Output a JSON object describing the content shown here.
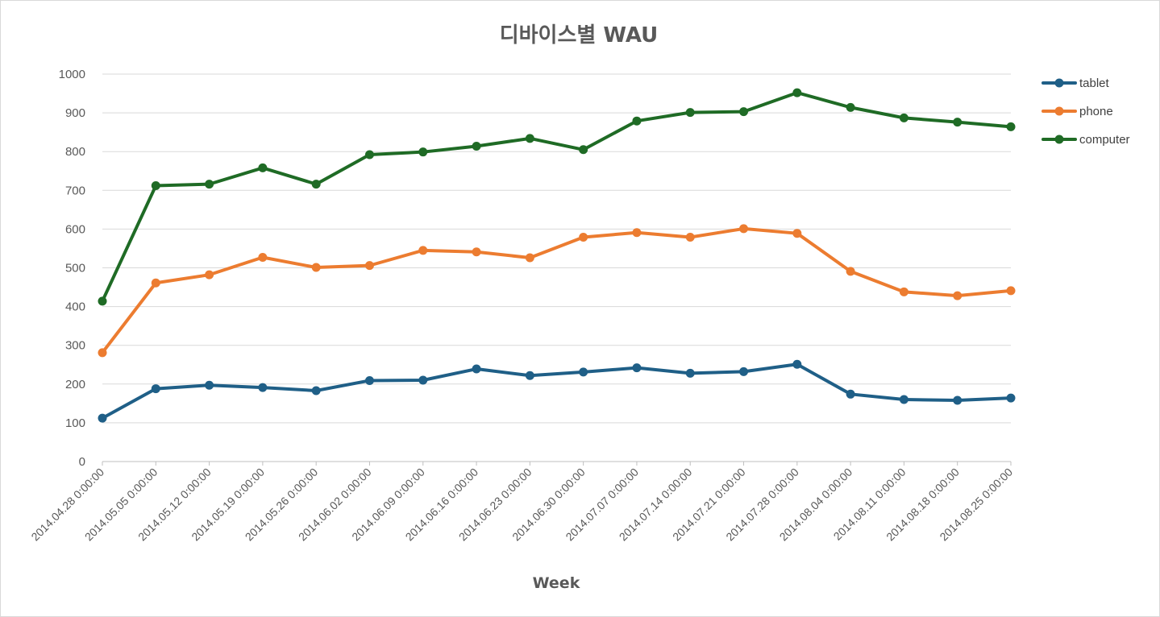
{
  "chart_data": {
    "type": "line",
    "title": "디바이스별 WAU",
    "xlabel": "Week",
    "ylabel": "",
    "ylim": [
      0,
      1000
    ],
    "yticks": [
      0,
      100,
      200,
      300,
      400,
      500,
      600,
      700,
      800,
      900,
      1000
    ],
    "grid": true,
    "legend_position": "right",
    "categories": [
      "2014.04.28 0:00:00",
      "2014.05.05 0:00:00",
      "2014.05.12 0:00:00",
      "2014.05.19 0:00:00",
      "2014.05.26 0:00:00",
      "2014.06.02 0:00:00",
      "2014.06.09 0:00:00",
      "2014.06.16 0:00:00",
      "2014.06.23 0:00:00",
      "2014.06.30 0:00:00",
      "2014.07.07 0:00:00",
      "2014.07.14 0:00:00",
      "2014.07.21 0:00:00",
      "2014.07.28 0:00:00",
      "2014.08.04 0:00:00",
      "2014.08.11 0:00:00",
      "2014.08.18 0:00:00",
      "2014.08.25 0:00:00"
    ],
    "series": [
      {
        "name": "tablet",
        "color": "#1f5f87",
        "values": [
          112,
          188,
          197,
          191,
          183,
          209,
          210,
          239,
          222,
          231,
          242,
          228,
          232,
          251,
          174,
          160,
          158,
          164
        ]
      },
      {
        "name": "phone",
        "color": "#ec7c30",
        "values": [
          281,
          461,
          482,
          527,
          501,
          506,
          545,
          541,
          526,
          579,
          591,
          579,
          601,
          589,
          491,
          438,
          428,
          441
        ]
      },
      {
        "name": "computer",
        "color": "#1f6b25",
        "values": [
          414,
          712,
          716,
          758,
          716,
          792,
          799,
          814,
          834,
          805,
          879,
          901,
          903,
          952,
          914,
          887,
          876,
          864
        ]
      }
    ]
  }
}
